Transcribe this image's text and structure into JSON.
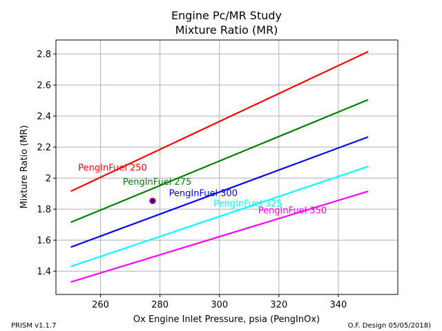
{
  "chart_data": {
    "type": "line",
    "title": "Engine Pc/MR Study",
    "subtitle": "Mixture Ratio (MR)",
    "xlabel": "Ox Engine Inlet Pressure, psia (PengInOx)",
    "ylabel": "Mixture Ratio (MR)",
    "xlim": [
      245,
      360
    ],
    "ylim": [
      1.25,
      2.89
    ],
    "xticks": [
      260,
      280,
      300,
      320,
      340
    ],
    "yticks": [
      1.4,
      1.6,
      1.8,
      2.0,
      2.2,
      2.4,
      2.6,
      2.8
    ],
    "ytick_labels": [
      "1.4",
      "1.6",
      "1.8",
      "2",
      "2.2",
      "2.4",
      "2.6",
      "2.8"
    ],
    "grid": true,
    "legend": "none (inline series labels)",
    "series": [
      {
        "name": "PengInFuel 250",
        "color": "#ff0000",
        "x": [
          250,
          350
        ],
        "y": [
          1.915,
          2.815
        ],
        "label_at": [
          252.5,
          2.07
        ]
      },
      {
        "name": "PengInFuel 275",
        "color": "#008000",
        "x": [
          250,
          350
        ],
        "y": [
          1.715,
          2.505
        ],
        "label_at": [
          267.5,
          1.98
        ]
      },
      {
        "name": "PengInFuel 300",
        "color": "#0000ff",
        "x": [
          250,
          350
        ],
        "y": [
          1.555,
          2.265
        ],
        "label_at": [
          283,
          1.905
        ]
      },
      {
        "name": "PengInFuel 325",
        "color": "#00ffff",
        "x": [
          250,
          350
        ],
        "y": [
          1.43,
          2.075
        ],
        "label_at": [
          298,
          1.84
        ]
      },
      {
        "name": "PengInFuel 350",
        "color": "#ff00ff",
        "x": [
          250,
          350
        ],
        "y": [
          1.33,
          1.915
        ],
        "label_at": [
          313,
          1.795
        ]
      }
    ],
    "marker": {
      "x": 277.5,
      "y": 1.853,
      "fill": "#0000ff",
      "edge": "#ff0000"
    }
  },
  "footer": {
    "left": "PRISM v1.1.7",
    "right": "O.F. Design 05/05/2018)"
  }
}
